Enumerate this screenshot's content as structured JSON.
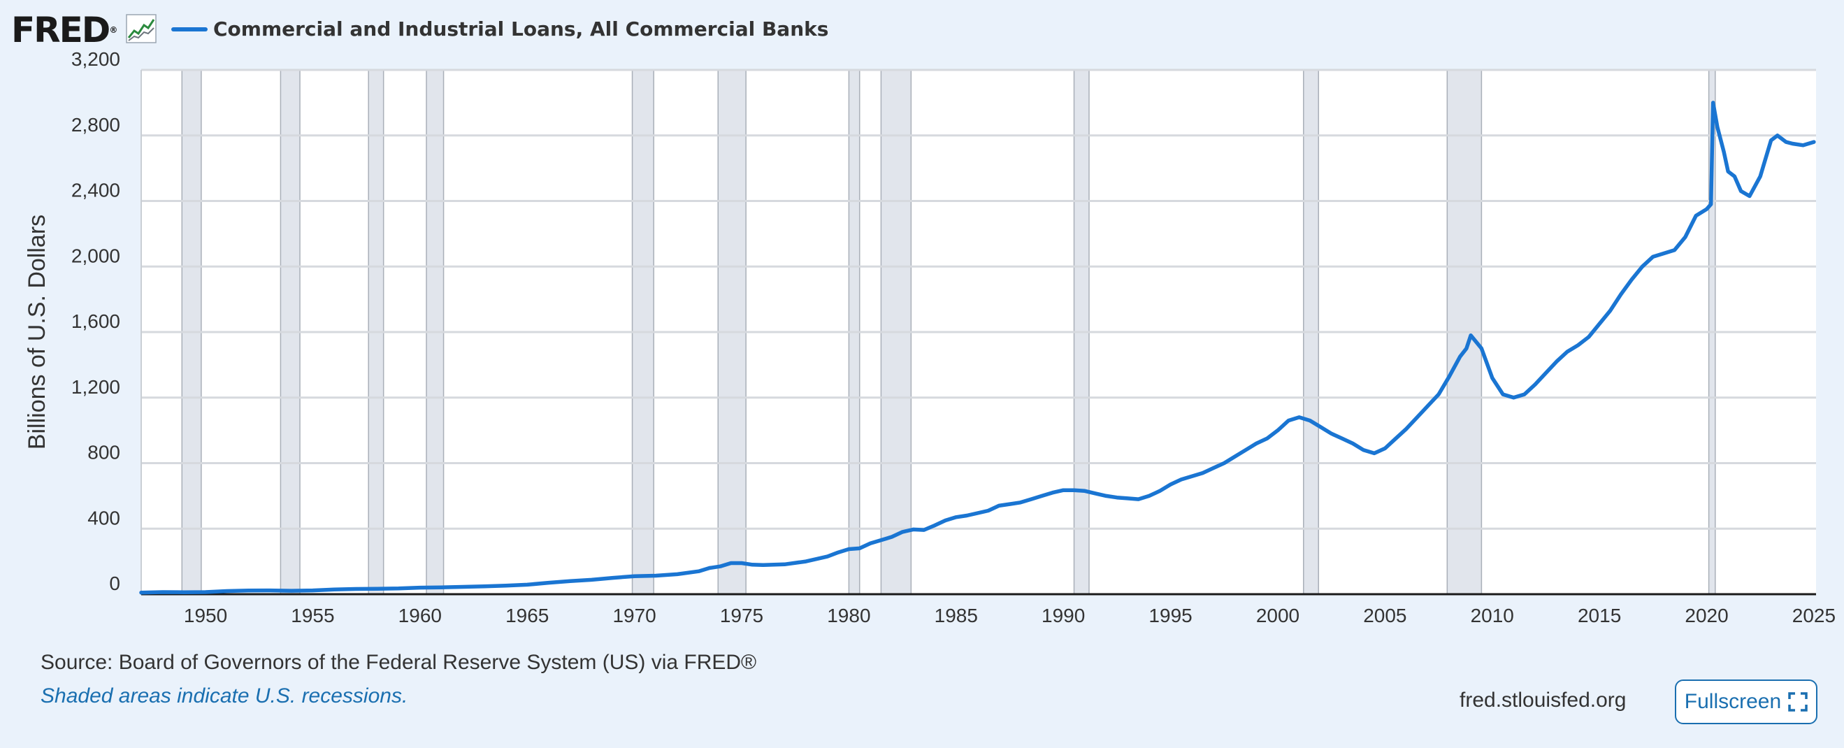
{
  "header": {
    "logo_text": "FRED",
    "logo_mark": "®",
    "series_title": "Commercial and Industrial Loans, All Commercial Banks"
  },
  "footer": {
    "source": "Source: Board of Governors of the Federal Reserve System (US) via FRED®",
    "recession_note": "Shaded areas indicate U.S. recessions.",
    "site_url": "fred.stlouisfed.org",
    "fullscreen_label": "Fullscreen"
  },
  "icons": {
    "logo_graph": "line-graph-icon",
    "fullscreen": "expand-icon"
  },
  "colors": {
    "series": "#1a75d2",
    "recession": "#e1e5ec",
    "background": "#eaf2fb",
    "plot_background": "#ffffff",
    "link": "#1a6fb0"
  },
  "chart_data": {
    "type": "line",
    "title": "Commercial and Industrial Loans, All Commercial Banks",
    "xlabel": "",
    "ylabel": "Billions of U.S. Dollars",
    "xlim": [
      1947,
      2025.1
    ],
    "ylim": [
      0,
      3200
    ],
    "x_ticks": [
      1950,
      1955,
      1960,
      1965,
      1970,
      1975,
      1980,
      1985,
      1990,
      1995,
      2000,
      2005,
      2010,
      2015,
      2020,
      2025
    ],
    "y_ticks": [
      0,
      400,
      800,
      1200,
      1600,
      2000,
      2400,
      2800,
      3200
    ],
    "y_tick_labels": [
      "0",
      "400",
      "800",
      "1,200",
      "1,600",
      "2,000",
      "2,400",
      "2,800",
      "3,200"
    ],
    "grid": true,
    "legend": "top-left",
    "recessions": [
      [
        1948.9,
        1949.8
      ],
      [
        1953.5,
        1954.4
      ],
      [
        1957.6,
        1958.3
      ],
      [
        1960.3,
        1961.1
      ],
      [
        1969.9,
        1970.9
      ],
      [
        1973.9,
        1975.2
      ],
      [
        1980.0,
        1980.5
      ],
      [
        1981.5,
        1982.9
      ],
      [
        1990.5,
        1991.2
      ],
      [
        2001.2,
        2001.9
      ],
      [
        2007.9,
        2009.5
      ],
      [
        2020.1,
        2020.4
      ]
    ],
    "series": [
      {
        "name": "Commercial and Industrial Loans, All Commercial Banks",
        "points": [
          [
            1947.0,
            10
          ],
          [
            1948.0,
            13
          ],
          [
            1949.0,
            12
          ],
          [
            1950.0,
            13
          ],
          [
            1951.0,
            19
          ],
          [
            1952.0,
            22
          ],
          [
            1953.0,
            23
          ],
          [
            1954.0,
            21
          ],
          [
            1955.0,
            23
          ],
          [
            1956.0,
            29
          ],
          [
            1957.0,
            32
          ],
          [
            1958.0,
            33
          ],
          [
            1959.0,
            35
          ],
          [
            1960.0,
            40
          ],
          [
            1961.0,
            42
          ],
          [
            1962.0,
            45
          ],
          [
            1963.0,
            48
          ],
          [
            1964.0,
            52
          ],
          [
            1965.0,
            58
          ],
          [
            1966.0,
            70
          ],
          [
            1967.0,
            80
          ],
          [
            1968.0,
            88
          ],
          [
            1969.0,
            100
          ],
          [
            1970.0,
            110
          ],
          [
            1971.0,
            113
          ],
          [
            1972.0,
            122
          ],
          [
            1973.0,
            140
          ],
          [
            1973.5,
            160
          ],
          [
            1974.0,
            170
          ],
          [
            1974.5,
            190
          ],
          [
            1975.0,
            190
          ],
          [
            1975.5,
            180
          ],
          [
            1976.0,
            178
          ],
          [
            1977.0,
            182
          ],
          [
            1978.0,
            200
          ],
          [
            1979.0,
            230
          ],
          [
            1979.5,
            255
          ],
          [
            1980.0,
            275
          ],
          [
            1980.5,
            280
          ],
          [
            1981.0,
            310
          ],
          [
            1982.0,
            350
          ],
          [
            1982.5,
            380
          ],
          [
            1983.0,
            395
          ],
          [
            1983.5,
            392
          ],
          [
            1984.0,
            420
          ],
          [
            1984.5,
            450
          ],
          [
            1985.0,
            470
          ],
          [
            1985.5,
            480
          ],
          [
            1986.0,
            495
          ],
          [
            1986.5,
            510
          ],
          [
            1987.0,
            540
          ],
          [
            1987.5,
            550
          ],
          [
            1988.0,
            560
          ],
          [
            1988.5,
            580
          ],
          [
            1989.0,
            600
          ],
          [
            1989.5,
            620
          ],
          [
            1990.0,
            635
          ],
          [
            1990.5,
            635
          ],
          [
            1991.0,
            630
          ],
          [
            1991.5,
            615
          ],
          [
            1992.0,
            600
          ],
          [
            1992.5,
            590
          ],
          [
            1993.0,
            585
          ],
          [
            1993.5,
            580
          ],
          [
            1994.0,
            600
          ],
          [
            1994.5,
            630
          ],
          [
            1995.0,
            670
          ],
          [
            1995.5,
            700
          ],
          [
            1996.0,
            720
          ],
          [
            1996.5,
            740
          ],
          [
            1997.0,
            770
          ],
          [
            1997.5,
            800
          ],
          [
            1998.0,
            840
          ],
          [
            1998.5,
            880
          ],
          [
            1999.0,
            920
          ],
          [
            1999.5,
            950
          ],
          [
            2000.0,
            1000
          ],
          [
            2000.5,
            1060
          ],
          [
            2001.0,
            1080
          ],
          [
            2001.5,
            1060
          ],
          [
            2002.0,
            1020
          ],
          [
            2002.5,
            980
          ],
          [
            2003.0,
            950
          ],
          [
            2003.5,
            920
          ],
          [
            2004.0,
            880
          ],
          [
            2004.5,
            860
          ],
          [
            2005.0,
            890
          ],
          [
            2005.5,
            950
          ],
          [
            2006.0,
            1010
          ],
          [
            2006.5,
            1080
          ],
          [
            2007.0,
            1150
          ],
          [
            2007.5,
            1220
          ],
          [
            2008.0,
            1330
          ],
          [
            2008.5,
            1450
          ],
          [
            2008.8,
            1500
          ],
          [
            2009.0,
            1580
          ],
          [
            2009.5,
            1500
          ],
          [
            2010.0,
            1320
          ],
          [
            2010.5,
            1220
          ],
          [
            2011.0,
            1200
          ],
          [
            2011.5,
            1220
          ],
          [
            2012.0,
            1280
          ],
          [
            2012.5,
            1350
          ],
          [
            2013.0,
            1420
          ],
          [
            2013.5,
            1480
          ],
          [
            2014.0,
            1520
          ],
          [
            2014.5,
            1570
          ],
          [
            2015.0,
            1650
          ],
          [
            2015.5,
            1730
          ],
          [
            2016.0,
            1830
          ],
          [
            2016.5,
            1920
          ],
          [
            2017.0,
            2000
          ],
          [
            2017.5,
            2060
          ],
          [
            2018.0,
            2080
          ],
          [
            2018.5,
            2100
          ],
          [
            2019.0,
            2180
          ],
          [
            2019.5,
            2310
          ],
          [
            2020.0,
            2350
          ],
          [
            2020.2,
            2380
          ],
          [
            2020.3,
            3000
          ],
          [
            2020.5,
            2850
          ],
          [
            2020.8,
            2700
          ],
          [
            2021.0,
            2580
          ],
          [
            2021.3,
            2550
          ],
          [
            2021.6,
            2460
          ],
          [
            2022.0,
            2430
          ],
          [
            2022.5,
            2550
          ],
          [
            2023.0,
            2770
          ],
          [
            2023.3,
            2800
          ],
          [
            2023.7,
            2760
          ],
          [
            2024.0,
            2750
          ],
          [
            2024.5,
            2740
          ],
          [
            2025.0,
            2760
          ]
        ]
      }
    ]
  }
}
